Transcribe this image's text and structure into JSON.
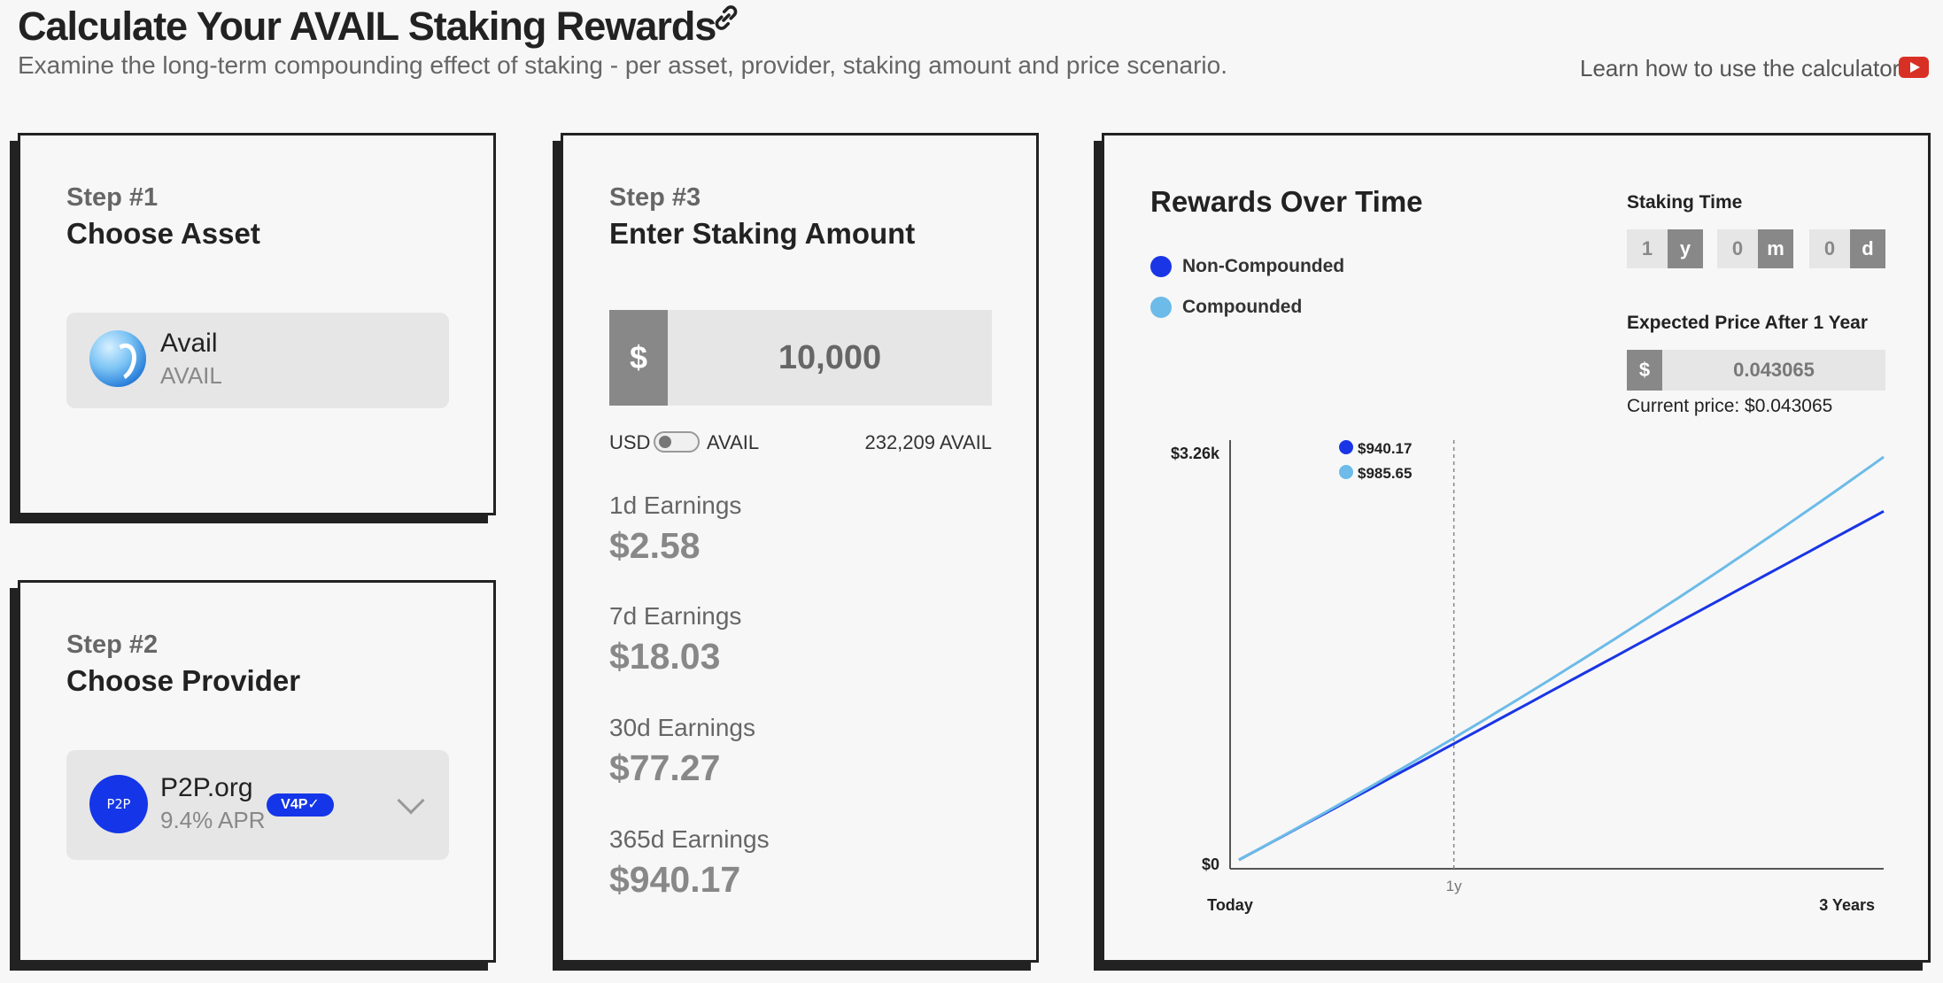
{
  "header": {
    "title": "Calculate Your AVAIL Staking Rewards",
    "subtitle": "Examine the long-term compounding effect of staking - per asset, provider, staking amount and price scenario.",
    "learn_link": "Learn how to use the calculator"
  },
  "step1": {
    "label": "Step #1",
    "title": "Choose Asset",
    "asset_name": "Avail",
    "asset_symbol": "AVAIL"
  },
  "step2": {
    "label": "Step #2",
    "title": "Choose Provider",
    "provider_name": "P2P.org",
    "provider_logo_text": "P2P",
    "provider_apr": "9.4% APR",
    "badge": "V4P✓"
  },
  "step3": {
    "label": "Step #3",
    "title": "Enter Staking Amount",
    "currency_prefix": "$",
    "amount": "10,000",
    "unit_usd": "USD",
    "unit_avail": "AVAIL",
    "converted_amount": "232,209 AVAIL",
    "earnings": [
      {
        "label": "1d Earnings",
        "value": "$2.58"
      },
      {
        "label": "7d Earnings",
        "value": "$18.03"
      },
      {
        "label": "30d Earnings",
        "value": "$77.27"
      },
      {
        "label": "365d Earnings",
        "value": "$940.17"
      }
    ]
  },
  "rewards": {
    "title": "Rewards Over Time",
    "legend": [
      {
        "label": "Non-Compounded",
        "color": "#1a35e6"
      },
      {
        "label": "Compounded",
        "color": "#6cbbe8"
      }
    ],
    "staking_time_label": "Staking Time",
    "staking_time": [
      {
        "value": "1",
        "unit": "y"
      },
      {
        "value": "0",
        "unit": "m"
      },
      {
        "value": "0",
        "unit": "d"
      }
    ],
    "price_label": "Expected Price After 1 Year",
    "price_prefix": "$",
    "price_value": "0.043065",
    "current_price": "Current price: $0.043065"
  },
  "chart_data": {
    "type": "line",
    "x": [
      0,
      1,
      3
    ],
    "x_unit": "years",
    "tick_labels": {
      "y_max": "$3.26k",
      "y_min": "$0",
      "x_start": "Today",
      "x_marker": "1y",
      "x_end": "3 Years"
    },
    "ylim": [
      0,
      3260
    ],
    "marker_x": 1,
    "series": [
      {
        "name": "Non-Compounded",
        "color": "#1a35e6",
        "values": [
          0,
          940.17,
          2820.51
        ]
      },
      {
        "name": "Compounded",
        "color": "#6cbbe8",
        "values": [
          0,
          985.65,
          3260
        ]
      }
    ],
    "tooltip": [
      {
        "label": "$940.17",
        "color": "#1a35e6"
      },
      {
        "label": "$985.65",
        "color": "#6cbbe8"
      }
    ]
  }
}
